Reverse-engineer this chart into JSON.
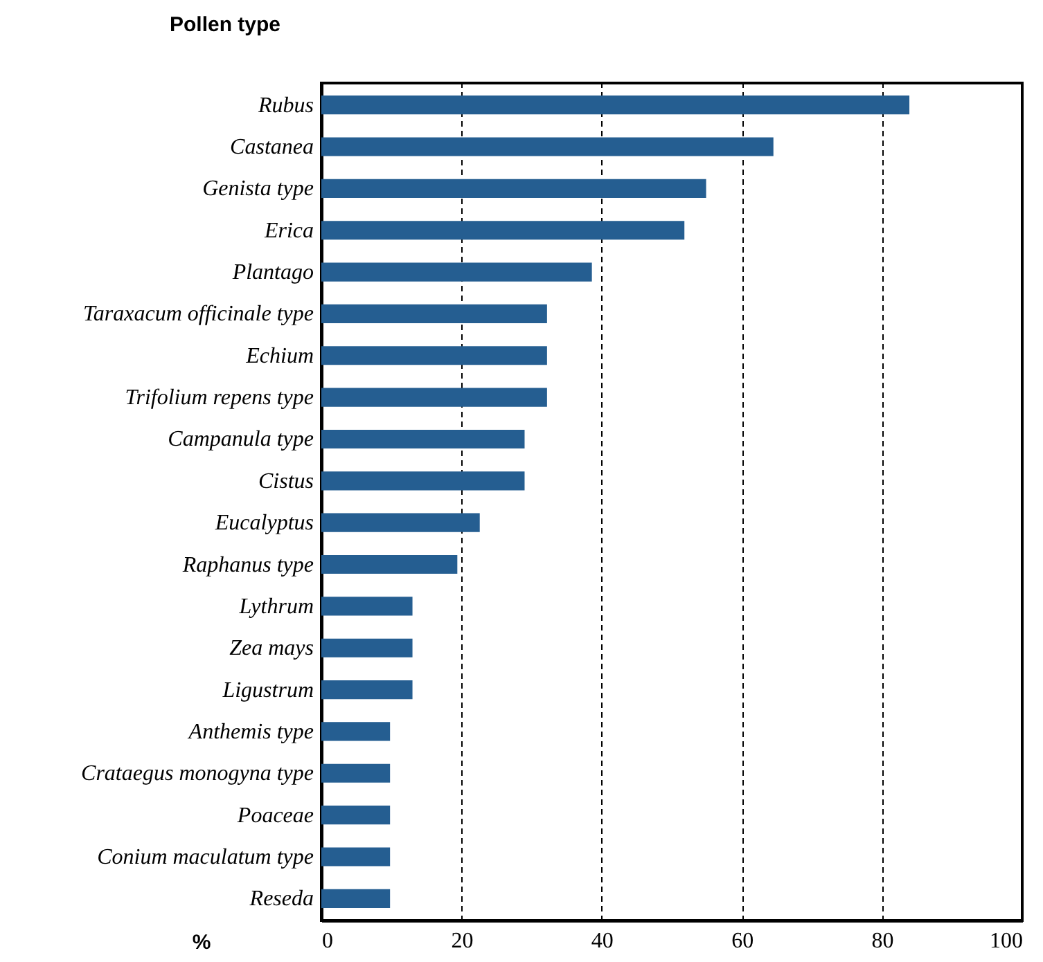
{
  "chart_data": {
    "type": "bar",
    "orientation": "horizontal",
    "xlabel": "%",
    "ylabel": "Pollen type",
    "categories": [
      "Rubus",
      "Castanea",
      "Genista type",
      "Erica",
      "Plantago",
      "Taraxacum officinale type",
      "Echium",
      "Trifolium repens type",
      "Campanula type",
      "Cistus",
      "Eucalyptus",
      "Raphanus type",
      "Lythrum",
      "Zea mays",
      "Ligustrum",
      "Anthemis type",
      "Crataegus monogyna type",
      "Poaceae",
      "Conium maculatum type",
      "Reseda"
    ],
    "values": [
      83.9,
      64.5,
      54.9,
      51.8,
      38.6,
      32.2,
      32.2,
      32.2,
      29.0,
      29.0,
      22.6,
      19.4,
      13.0,
      13.0,
      13.0,
      9.8,
      9.8,
      9.8,
      9.8,
      9.8
    ],
    "color": "#255e91",
    "xlim": [
      0,
      100
    ],
    "xticks": [
      0,
      20,
      40,
      60,
      80,
      100
    ],
    "grid": "x"
  }
}
